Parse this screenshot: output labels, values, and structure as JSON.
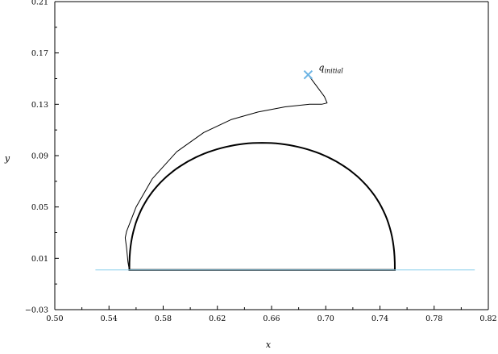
{
  "chart_data": {
    "type": "line",
    "title": "",
    "xlabel": "x",
    "ylabel": "y",
    "xlim": [
      0.5,
      0.82
    ],
    "ylim": [
      -0.03,
      0.21
    ],
    "x_ticks": [
      "0.50",
      "0.54",
      "0.58",
      "0.62",
      "0.66",
      "0.70",
      "0.74",
      "0.78",
      "0.82"
    ],
    "y_ticks": [
      "-0.03",
      "0.01",
      "0.05",
      "0.09",
      "0.13",
      "0.17",
      "0.21"
    ],
    "grid": false,
    "colors": {
      "trajectory": "#000000",
      "target": "#000000",
      "ground": "#87ceeb",
      "start_marker": "#6cb4e4"
    },
    "series": [
      {
        "kind": "trajectory",
        "points": [
          [
            0.687,
            0.153
          ],
          [
            0.692,
            0.146
          ],
          [
            0.699,
            0.136
          ],
          [
            0.701,
            0.131
          ],
          [
            0.697,
            0.13
          ],
          [
            0.688,
            0.13
          ],
          [
            0.67,
            0.128
          ],
          [
            0.65,
            0.124
          ],
          [
            0.63,
            0.118
          ],
          [
            0.61,
            0.108
          ],
          [
            0.59,
            0.093
          ],
          [
            0.572,
            0.072
          ],
          [
            0.56,
            0.05
          ],
          [
            0.553,
            0.031
          ],
          [
            0.552,
            0.026
          ],
          [
            0.553,
            0.018
          ],
          [
            0.554,
            0.007
          ],
          [
            0.555,
            0.001
          ]
        ]
      },
      {
        "kind": "target",
        "dome": {
          "x_start": 0.555,
          "x_end": 0.751,
          "peak_x": 0.651,
          "peak_y": 0.1,
          "base_y": 0.001
        }
      },
      {
        "kind": "ground",
        "points": [
          [
            0.53,
            0.001
          ],
          [
            0.81,
            0.001
          ]
        ]
      }
    ],
    "annotations": [
      {
        "kind": "start",
        "x": 0.687,
        "y": 0.153,
        "label_base": "q",
        "label_sub": "initial"
      }
    ]
  }
}
